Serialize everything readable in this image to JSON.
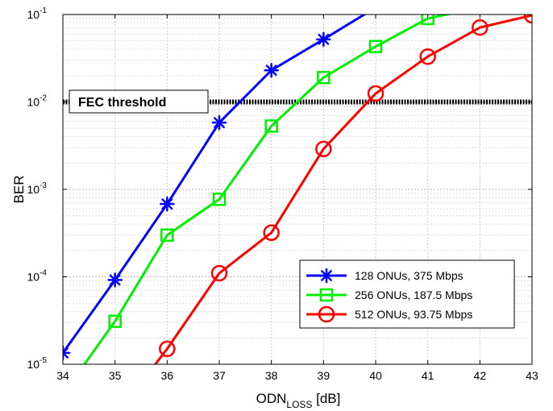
{
  "chart_data": {
    "type": "line",
    "xlabel_main": "ODN",
    "xlabel_sub": "LOSS",
    "xlabel_unit": " [dB]",
    "ylabel": "BER",
    "xlim": [
      34,
      43
    ],
    "ylim": [
      1e-05,
      0.1
    ],
    "yscale": "log",
    "grid": true,
    "x_ticks": [
      34,
      35,
      36,
      37,
      38,
      39,
      40,
      41,
      42,
      43
    ],
    "y_ticks": [
      {
        "value": 1e-05,
        "base": "10",
        "exp": "-5"
      },
      {
        "value": 0.0001,
        "base": "10",
        "exp": "-4"
      },
      {
        "value": 0.001,
        "base": "10",
        "exp": "-3"
      },
      {
        "value": 0.01,
        "base": "10",
        "exp": "-2"
      },
      {
        "value": 0.1,
        "base": "10",
        "exp": "-1"
      }
    ],
    "threshold": {
      "label": "FEC threshold",
      "value": 0.01
    },
    "legend_position": "bottom-right",
    "series": [
      {
        "name": "128 ONUs, 375 Mbps",
        "color": "#0000ff",
        "marker": "asterisk",
        "x": [
          34,
          35,
          36,
          37,
          38,
          39,
          40
        ],
        "y": [
          1.35e-05,
          9.2e-05,
          0.00068,
          0.0058,
          0.023,
          0.052,
          0.12
        ]
      },
      {
        "name": "256 ONUs, 187.5 Mbps",
        "color": "#00ee00",
        "marker": "square",
        "x": [
          34,
          35,
          36,
          37,
          38,
          39,
          40,
          41,
          42
        ],
        "y": [
          4.5e-06,
          3.1e-05,
          0.0003,
          0.00077,
          0.0053,
          0.019,
          0.043,
          0.09,
          0.12
        ]
      },
      {
        "name": "512 ONUs, 93.75 Mbps",
        "color": "#ff0000",
        "marker": "circle",
        "x": [
          35,
          36,
          37,
          38,
          39,
          40,
          41,
          42,
          43
        ],
        "y": [
          2.5e-06,
          1.5e-05,
          0.00011,
          0.00032,
          0.0029,
          0.0125,
          0.033,
          0.071,
          0.098
        ]
      }
    ]
  }
}
